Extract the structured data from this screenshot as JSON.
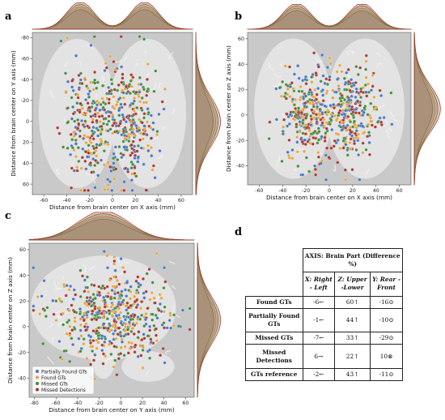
{
  "panel_labels": [
    "a",
    "b",
    "c",
    "d"
  ],
  "colors": {
    "partially_found": "#4472c4",
    "found": "#e8a33c",
    "missed": "#3e8a3a",
    "missed_detections": "#a8322a",
    "plot_bg": "#c9c9c9",
    "brain": "#e6e6e6"
  },
  "chart_data": [
    {
      "type": "scatter",
      "panel": "a",
      "xlabel": "Distance from brain center on X axis (mm)",
      "ylabel": "Distance from brain center on Y axis (mm)",
      "xlim": [
        -70,
        70
      ],
      "ylim": [
        70,
        -85
      ],
      "y_inverted": true,
      "xticks": [
        -60,
        -40,
        -20,
        0,
        20,
        40,
        60
      ],
      "yticks": [
        -80,
        -60,
        -40,
        -20,
        0,
        20,
        40,
        60
      ],
      "marginals": "top and right density curves"
    },
    {
      "type": "scatter",
      "panel": "b",
      "xlabel": "Distance from brain center on X axis (mm)",
      "ylabel": "Distance from brain center on Z axis (mm)",
      "xlim": [
        -70,
        70
      ],
      "ylim": [
        -55,
        65
      ],
      "xticks": [
        -60,
        -40,
        -20,
        0,
        20,
        40,
        60
      ],
      "yticks": [
        -40,
        -20,
        0,
        20,
        40,
        60
      ],
      "marginals": "top and right density curves"
    },
    {
      "type": "scatter",
      "panel": "c",
      "xlabel": "Distance from brain center on Y axis (mm)",
      "ylabel": "Distance from brain center on Z axis (mm)",
      "xlim": [
        -85,
        68
      ],
      "ylim": [
        -55,
        65
      ],
      "xticks": [
        -80,
        -60,
        -40,
        -20,
        0,
        20,
        40,
        60
      ],
      "yticks": [
        -40,
        -20,
        0,
        20,
        40,
        60
      ],
      "legend": [
        "Partially Found GTs",
        "Found GTs",
        "Missed GTs",
        "Missed Detections"
      ],
      "legend_position": "lower-left",
      "marginals": "top and right density curves"
    },
    {
      "type": "table",
      "panel": "d",
      "title": "AXIS: Brain Part (Difference %)",
      "columns": [
        "X: Right - Left",
        "Z: Upper -Lower",
        "Y: Rear - Front"
      ],
      "rows": [
        {
          "label": "Found GTs",
          "cells": [
            "-6←",
            "60↑",
            "-16⊙"
          ]
        },
        {
          "label": "Partially Found GTs",
          "cells": [
            "-1←",
            "44↑",
            "-10⊙"
          ]
        },
        {
          "label": "Missed GTs",
          "cells": [
            "-7←",
            "33↑",
            "-29⊙"
          ]
        },
        {
          "label": "Missed Detections",
          "cells": [
            "6→",
            "22↑",
            "10⊗"
          ]
        },
        {
          "label": "GTs reference",
          "cells": [
            "-2←",
            "43↑",
            "-11⊙"
          ]
        }
      ]
    }
  ]
}
